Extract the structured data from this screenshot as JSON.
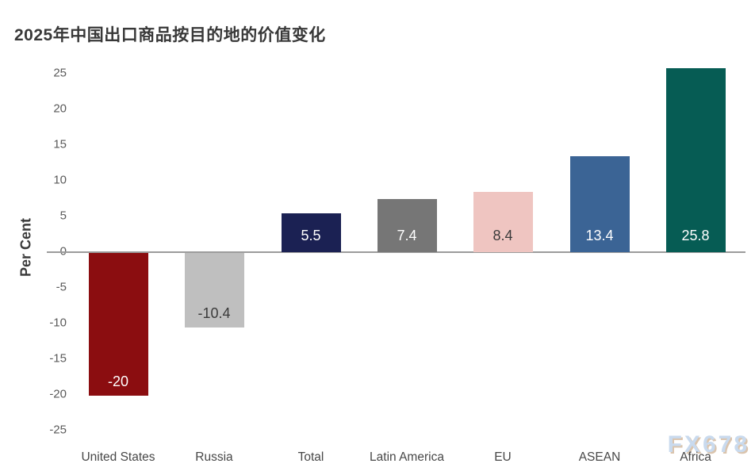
{
  "chart_data": {
    "type": "bar",
    "title": "2025年中国出口商品按目的地的价值变化",
    "ylabel": "Per Cent",
    "xlabel": "",
    "categories": [
      "United States",
      "Russia",
      "Total",
      "Latin America",
      "EU",
      "ASEAN",
      "Africa"
    ],
    "values": [
      -20,
      -10.4,
      5.5,
      7.4,
      8.4,
      13.4,
      25.8
    ],
    "value_labels": [
      "-20",
      "-10.4",
      "5.5",
      "7.4",
      "8.4",
      "13.4",
      "25.8"
    ],
    "bar_colors": [
      "#8b0d10",
      "#bfbfbf",
      "#1b2153",
      "#767676",
      "#efc5c1",
      "#3b6495",
      "#065c54"
    ],
    "value_label_colors": [
      "#ffffff",
      "#3a3a3a",
      "#ffffff",
      "#ffffff",
      "#3a3a3a",
      "#ffffff",
      "#ffffff"
    ],
    "ylim": [
      -25,
      25
    ],
    "yticks": [
      25,
      20,
      15,
      10,
      5,
      0,
      -5,
      -10,
      -15,
      -20,
      -25
    ],
    "grid": false,
    "legend": "none",
    "axis_line_color": "#9c9c9c"
  },
  "watermark": {
    "text": "FX678",
    "color": "#c7d9ee",
    "shadow_color": "#d9c1a9"
  }
}
